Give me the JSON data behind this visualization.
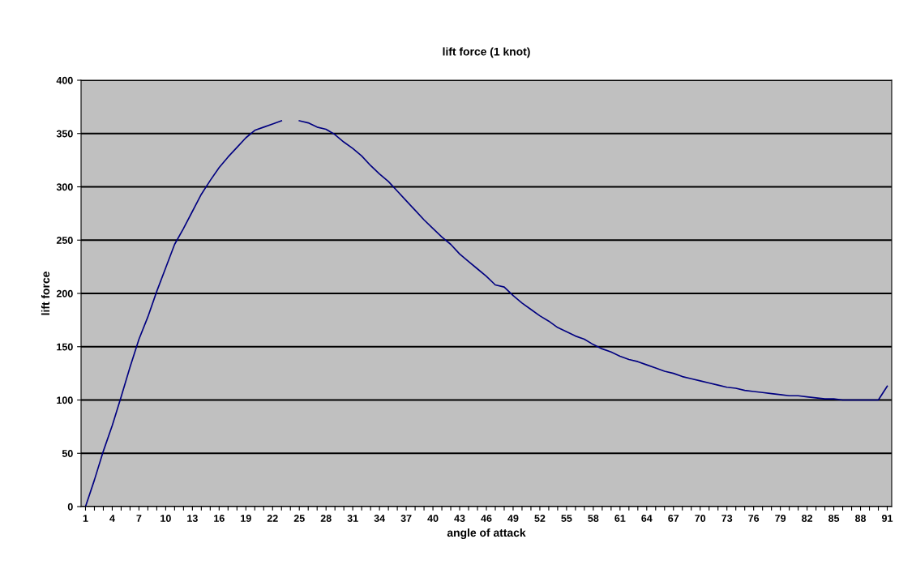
{
  "chart_data": {
    "type": "line",
    "title": "lift force (1 knot)",
    "xlabel": "angle of attack",
    "ylabel": "lift force",
    "categories": [
      "1",
      null,
      null,
      "4",
      null,
      null,
      "7",
      null,
      null,
      "10",
      null,
      null,
      "13",
      null,
      null,
      "16",
      null,
      null,
      "19",
      null,
      null,
      "22",
      null,
      null,
      "25",
      null,
      null,
      "28",
      null,
      null,
      "31",
      null,
      null,
      "34",
      null,
      null,
      "37",
      null,
      null,
      "40",
      null,
      null,
      "43",
      null,
      null,
      "46",
      null,
      null,
      "49",
      null,
      null,
      "52",
      null,
      null,
      "55",
      null,
      null,
      "58",
      null,
      null,
      "61",
      null,
      null,
      "64",
      null,
      null,
      "67",
      null,
      null,
      "70",
      null,
      null,
      "73",
      null,
      null,
      "76",
      null,
      null,
      "79",
      null,
      null,
      "82",
      null,
      null,
      "85",
      null,
      null,
      "88",
      null,
      null,
      "91"
    ],
    "series": [
      {
        "color": "#000080",
        "values": [
          0,
          25,
          52,
          76,
          103,
          131,
          157,
          178,
          202,
          224,
          246,
          261,
          277,
          293,
          306,
          318,
          328,
          337,
          346,
          353,
          356,
          359,
          362,
          null,
          362,
          360,
          356,
          354,
          349,
          342,
          336,
          329,
          320,
          312,
          305,
          296,
          287,
          278,
          269,
          261,
          253,
          246,
          237,
          230,
          223,
          216,
          208,
          206,
          198,
          191,
          185,
          179,
          174,
          168,
          164,
          160,
          157,
          152,
          148,
          145,
          141,
          138,
          136,
          133,
          130,
          127,
          125,
          122,
          120,
          118,
          116,
          114,
          112,
          111,
          109,
          108,
          107,
          106,
          105,
          104,
          104,
          103,
          102,
          101,
          101,
          100,
          100,
          100,
          100,
          100,
          113
        ]
      }
    ],
    "ylim": [
      0,
      400
    ],
    "yticks": [
      0,
      50,
      100,
      150,
      200,
      250,
      300,
      350,
      400
    ],
    "grid": "y"
  }
}
